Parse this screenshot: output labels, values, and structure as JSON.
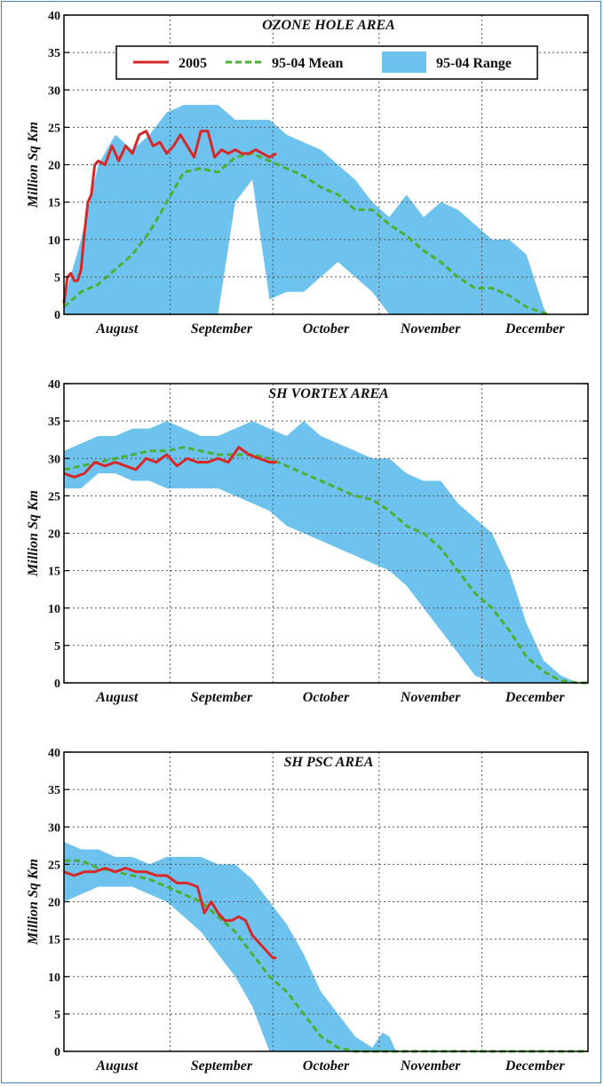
{
  "colors": {
    "range_fill": "#6ec3ee",
    "line_2005": "#d62828",
    "line_mean": "#4caf34",
    "frame": "#4a7fb5"
  },
  "legend": [
    {
      "label": "2005",
      "style": "solid-red"
    },
    {
      "label": "95-04 Mean",
      "style": "dashed-green"
    },
    {
      "label": "95-04 Range",
      "style": "blue-fill"
    }
  ],
  "chart_data": [
    {
      "type": "area",
      "title": "OZONE HOLE AREA",
      "ylabel": "Million Sq Km",
      "xlabel": "",
      "ylim": [
        0,
        40
      ],
      "xlim": [
        0,
        153
      ],
      "yticks": [
        0,
        5,
        10,
        15,
        20,
        25,
        30,
        35,
        40
      ],
      "month_ticks": [
        {
          "label": "August",
          "x": 15.5
        },
        {
          "label": "September",
          "x": 46
        },
        {
          "label": "October",
          "x": 76.5
        },
        {
          "label": "November",
          "x": 107
        },
        {
          "label": "December",
          "x": 137.5
        }
      ],
      "grid_x": [
        31,
        61,
        92,
        122
      ],
      "grid": true,
      "legend_position": "top",
      "series": [
        {
          "name": "95-04 Range",
          "kind": "range",
          "x": [
            0,
            5,
            10,
            15,
            20,
            25,
            30,
            35,
            40,
            45,
            50,
            55,
            60,
            65,
            70,
            75,
            80,
            85,
            90,
            95,
            100,
            105,
            110,
            115,
            120,
            125,
            130,
            135,
            140,
            141
          ],
          "lower": [
            0,
            0,
            0,
            0,
            0,
            0,
            0,
            0,
            0,
            0,
            15,
            18,
            2,
            3,
            3,
            5,
            7,
            5,
            3,
            0,
            0,
            0,
            0,
            0,
            0,
            0,
            0,
            0,
            0,
            0
          ],
          "upper": [
            2,
            10,
            20,
            24,
            22,
            24,
            27,
            28,
            28,
            28,
            26,
            26,
            26,
            24,
            23,
            22,
            20,
            18,
            15,
            13,
            16,
            13,
            15,
            14,
            12,
            10,
            10,
            8,
            1,
            0
          ]
        },
        {
          "name": "95-04 Mean",
          "kind": "line",
          "x": [
            0,
            5,
            10,
            15,
            20,
            25,
            30,
            35,
            40,
            45,
            50,
            55,
            60,
            65,
            70,
            75,
            80,
            85,
            90,
            95,
            100,
            105,
            110,
            115,
            120,
            125,
            130,
            135,
            140,
            142
          ],
          "values": [
            1,
            3,
            4,
            6,
            8,
            11,
            15,
            19,
            19.5,
            19,
            21,
            21.5,
            20.5,
            19.5,
            18.5,
            17,
            16,
            14,
            14,
            12,
            10.5,
            8.5,
            7,
            5,
            3.5,
            3.5,
            2.5,
            1,
            0.2,
            0
          ]
        },
        {
          "name": "2005",
          "kind": "line",
          "x": [
            0,
            1,
            2,
            3,
            4,
            5,
            6,
            7,
            8,
            9,
            10,
            12,
            14,
            16,
            18,
            20,
            22,
            24,
            26,
            28,
            30,
            32,
            34,
            36,
            38,
            40,
            42,
            44,
            46,
            48,
            50,
            52,
            54,
            56,
            58,
            60,
            62
          ],
          "values": [
            1.5,
            5,
            5.5,
            4.5,
            4.5,
            6,
            11,
            15,
            16,
            20,
            20.5,
            20,
            22.5,
            20.5,
            22.5,
            21.5,
            24,
            24.5,
            22.5,
            23,
            21.5,
            22.5,
            24,
            22.5,
            21,
            24.5,
            24.5,
            21,
            22,
            21.5,
            22,
            21.5,
            21.5,
            22,
            21.5,
            21,
            21.5
          ]
        }
      ]
    },
    {
      "type": "area",
      "title": "SH VORTEX AREA",
      "ylabel": "Million Sq Km",
      "xlabel": "",
      "ylim": [
        0,
        40
      ],
      "xlim": [
        0,
        153
      ],
      "yticks": [
        0,
        5,
        10,
        15,
        20,
        25,
        30,
        35,
        40
      ],
      "month_ticks": [
        {
          "label": "August",
          "x": 15.5
        },
        {
          "label": "September",
          "x": 46
        },
        {
          "label": "October",
          "x": 76.5
        },
        {
          "label": "November",
          "x": 107
        },
        {
          "label": "December",
          "x": 137.5
        }
      ],
      "grid_x": [
        31,
        61,
        92,
        122
      ],
      "grid": true,
      "series": [
        {
          "name": "95-04 Range",
          "kind": "range",
          "x": [
            0,
            5,
            10,
            15,
            20,
            25,
            30,
            35,
            40,
            45,
            50,
            55,
            60,
            65,
            70,
            75,
            80,
            85,
            90,
            95,
            100,
            105,
            110,
            115,
            120,
            125,
            130,
            135,
            140,
            145,
            150,
            153
          ],
          "lower": [
            26,
            26,
            28,
            28,
            27,
            27,
            26,
            26,
            26,
            26,
            25,
            24,
            23,
            21,
            20,
            19,
            18,
            17,
            16,
            15,
            13,
            10,
            7,
            4,
            1,
            0,
            0,
            0,
            0,
            0,
            0,
            0
          ],
          "upper": [
            31,
            32,
            33,
            33,
            34,
            34,
            35,
            34,
            33,
            33,
            34,
            35,
            34,
            33,
            35,
            33,
            32,
            31,
            30,
            30,
            28,
            27,
            27,
            24,
            22,
            20,
            15,
            8,
            3,
            1,
            0,
            0
          ]
        },
        {
          "name": "95-04 Mean",
          "kind": "line",
          "x": [
            0,
            5,
            10,
            15,
            20,
            25,
            30,
            35,
            40,
            45,
            50,
            55,
            60,
            65,
            70,
            75,
            80,
            85,
            90,
            95,
            100,
            105,
            110,
            115,
            120,
            125,
            130,
            135,
            140,
            145,
            150,
            153
          ],
          "values": [
            28.5,
            29,
            29.5,
            30,
            30.5,
            31,
            31,
            31.5,
            31,
            30.5,
            30.5,
            30.5,
            30,
            29,
            28,
            27,
            26,
            25,
            24.5,
            23,
            21,
            20,
            18,
            15,
            12,
            10,
            7,
            3.5,
            1.5,
            0.3,
            0,
            0
          ]
        },
        {
          "name": "2005",
          "kind": "line",
          "x": [
            0,
            3,
            6,
            9,
            12,
            15,
            18,
            21,
            24,
            27,
            30,
            33,
            36,
            39,
            42,
            45,
            48,
            51,
            54,
            57,
            60,
            62
          ],
          "values": [
            28,
            27.5,
            28,
            29.5,
            29,
            29.5,
            29,
            28.5,
            30,
            29.5,
            30.5,
            29,
            30,
            29.5,
            29.5,
            30,
            29.5,
            31.5,
            30.5,
            30,
            29.5,
            29.5
          ]
        }
      ]
    },
    {
      "type": "area",
      "title": "SH PSC AREA",
      "ylabel": "Million Sq Km",
      "xlabel": "",
      "ylim": [
        0,
        40
      ],
      "xlim": [
        0,
        153
      ],
      "yticks": [
        0,
        5,
        10,
        15,
        20,
        25,
        30,
        35,
        40
      ],
      "month_ticks": [
        {
          "label": "August",
          "x": 15.5
        },
        {
          "label": "September",
          "x": 46
        },
        {
          "label": "October",
          "x": 76.5
        },
        {
          "label": "November",
          "x": 107
        },
        {
          "label": "December",
          "x": 137.5
        }
      ],
      "grid_x": [
        31,
        61,
        92,
        122
      ],
      "grid": true,
      "series": [
        {
          "name": "95-04 Range",
          "kind": "range",
          "x": [
            0,
            5,
            10,
            15,
            20,
            25,
            30,
            35,
            40,
            45,
            50,
            55,
            60,
            65,
            70,
            75,
            80,
            85,
            90,
            93,
            95,
            97,
            98
          ],
          "lower": [
            20,
            21,
            22,
            22,
            22,
            21,
            20,
            18,
            16,
            13,
            10,
            6,
            0,
            0,
            0,
            0,
            0,
            0,
            0,
            0,
            0,
            0,
            0
          ],
          "upper": [
            28,
            27,
            27,
            26,
            26,
            25,
            26,
            26,
            26,
            25,
            25,
            23,
            20,
            17,
            13,
            8,
            5,
            2,
            0.5,
            2.5,
            2,
            0,
            0
          ]
        },
        {
          "name": "95-04 Mean",
          "kind": "line",
          "x": [
            0,
            5,
            10,
            15,
            20,
            25,
            30,
            35,
            40,
            45,
            50,
            55,
            60,
            65,
            70,
            75,
            80,
            85,
            90,
            95,
            100,
            110,
            120,
            130,
            140,
            153
          ],
          "values": [
            25.5,
            25.5,
            24.5,
            24,
            23.5,
            23,
            22,
            21,
            20,
            18,
            16,
            13,
            10,
            8,
            5,
            2,
            0.5,
            0,
            0,
            0,
            0,
            0,
            0,
            0,
            0,
            0
          ]
        },
        {
          "name": "2005",
          "kind": "line",
          "x": [
            0,
            3,
            6,
            9,
            12,
            15,
            18,
            21,
            24,
            27,
            30,
            33,
            36,
            39,
            41,
            43,
            45,
            47,
            49,
            51,
            53,
            55,
            57,
            59,
            61,
            62
          ],
          "values": [
            24,
            23.5,
            24,
            24,
            24.5,
            24,
            24.5,
            24,
            24,
            23.5,
            23.5,
            22.5,
            22.5,
            22,
            18.5,
            20,
            18.5,
            17.5,
            17.5,
            18,
            17.5,
            15.5,
            14.5,
            13.5,
            12.5,
            12.5
          ]
        }
      ]
    }
  ]
}
